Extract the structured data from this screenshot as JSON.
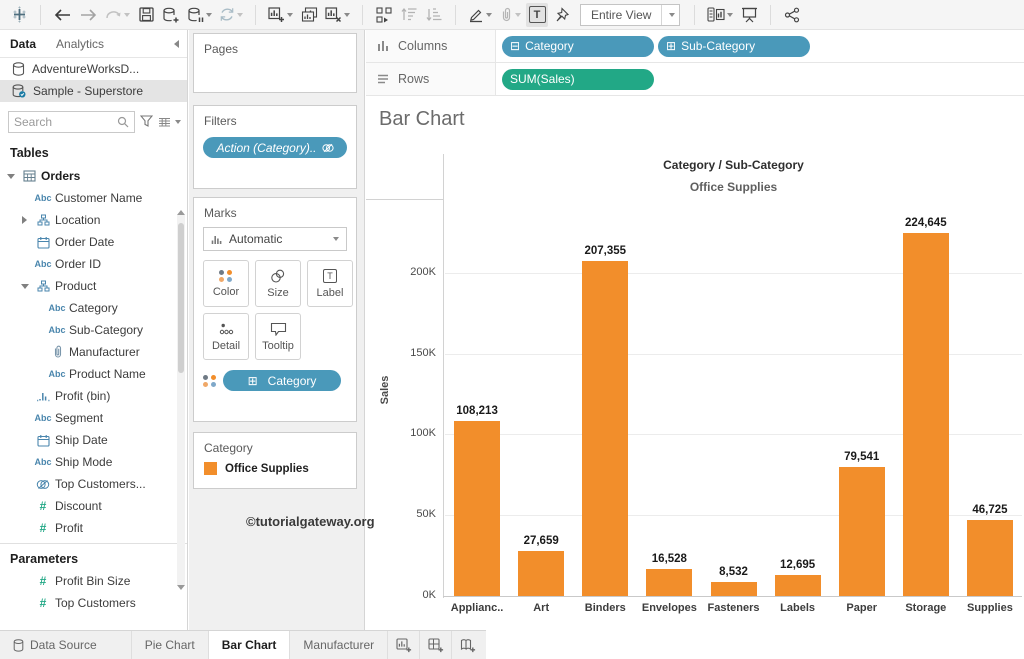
{
  "toolbar": {
    "view_mode": "Entire View"
  },
  "data_pane": {
    "tabs": [
      "Data",
      "Analytics"
    ],
    "datasources": [
      {
        "name": "AdventureWorksD...",
        "selected": false
      },
      {
        "name": "Sample - Superstore",
        "selected": true
      }
    ],
    "search_placeholder": "Search",
    "tables_header": "Tables",
    "fields": [
      {
        "icon": "table",
        "label": "Orders",
        "indent": 0,
        "expander": "down",
        "bold": true
      },
      {
        "icon": "abc",
        "label": "Customer Name",
        "indent": 1
      },
      {
        "icon": "hierarchy",
        "label": "Location",
        "indent": 1,
        "expander": "right"
      },
      {
        "icon": "calendar",
        "label": "Order Date",
        "indent": 1
      },
      {
        "icon": "abc",
        "label": "Order ID",
        "indent": 1
      },
      {
        "icon": "hierarchy",
        "label": "Product",
        "indent": 1,
        "expander": "down"
      },
      {
        "icon": "abc",
        "label": "Category",
        "indent": 2
      },
      {
        "icon": "abc",
        "label": "Sub-Category",
        "indent": 2
      },
      {
        "icon": "paperclip",
        "label": "Manufacturer",
        "indent": 2
      },
      {
        "icon": "abc",
        "label": "Product Name",
        "indent": 2
      },
      {
        "icon": "histogram",
        "label": "Profit (bin)",
        "indent": 1
      },
      {
        "icon": "abc",
        "label": "Segment",
        "indent": 1
      },
      {
        "icon": "calendar",
        "label": "Ship Date",
        "indent": 1
      },
      {
        "icon": "abc",
        "label": "Ship Mode",
        "indent": 1
      },
      {
        "icon": "sets",
        "label": "Top Customers...",
        "indent": 1
      },
      {
        "icon": "hash",
        "label": "Discount",
        "indent": 1
      },
      {
        "icon": "hash",
        "label": "Profit",
        "indent": 1
      }
    ],
    "parameters_header": "Parameters",
    "parameters": [
      {
        "icon": "hash",
        "label": "Profit Bin Size"
      },
      {
        "icon": "hash",
        "label": "Top Customers"
      }
    ]
  },
  "cards": {
    "pages_label": "Pages",
    "filters_label": "Filters",
    "filter_pill": "Action (Category)..",
    "marks_label": "Marks",
    "mark_type_dropdown": "Automatic",
    "marks_buttons": [
      "Color",
      "Size",
      "Label",
      "Detail",
      "Tooltip"
    ],
    "marks_pill": "Category",
    "legend": {
      "title": "Category",
      "items": [
        {
          "label": "Office Supplies",
          "color": "#F28E2B"
        }
      ]
    }
  },
  "watermark": "©tutorialgateway.org",
  "shelves": {
    "columns_label": "Columns",
    "rows_label": "Rows",
    "columns_pills": [
      "Category",
      "Sub-Category"
    ],
    "rows_pills": [
      "SUM(Sales)"
    ]
  },
  "sheet": {
    "title": "Bar Chart"
  },
  "chart_data": {
    "type": "bar",
    "title": "Bar Chart",
    "col_header": "Category / Sub-Category",
    "col_subheader": "Office Supplies",
    "categories": [
      "Applianc..",
      "Art",
      "Binders",
      "Envelopes",
      "Fasteners",
      "Labels",
      "Paper",
      "Storage",
      "Supplies"
    ],
    "values": [
      108213,
      27659,
      207355,
      16528,
      8532,
      12695,
      79541,
      224645,
      46725
    ],
    "xlabel": "Category / Sub-Category",
    "ylabel": "Sales",
    "ytick_values": [
      0,
      50000,
      100000,
      150000,
      200000
    ],
    "ytick_labels": [
      "0K",
      "50K",
      "100K",
      "150K",
      "200K"
    ],
    "ylim": [
      0,
      245000
    ],
    "grid": true,
    "bar_color": "#F28E2B",
    "legend_position": "left-card"
  },
  "bottom_tabs": {
    "tabs": [
      {
        "label": "Data Source",
        "icon": "database",
        "active": false
      },
      {
        "label": "Pie Chart",
        "active": false
      },
      {
        "label": "Bar Chart",
        "active": true
      },
      {
        "label": "Manufacturer",
        "active": false
      }
    ]
  },
  "colors": {
    "bar": "#F28E2B",
    "dimension_pill": "#4A99BA",
    "measure_pill": "#22A886"
  }
}
